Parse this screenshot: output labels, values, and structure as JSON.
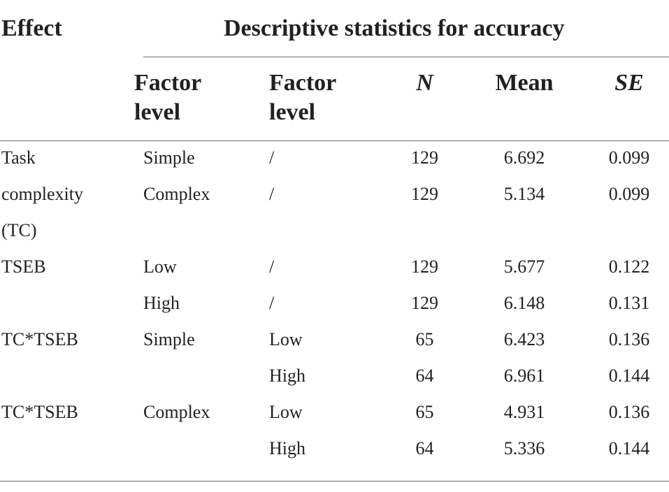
{
  "header": {
    "effect": "Effect",
    "group_title": "Descriptive statistics for accuracy",
    "factor_level_1": [
      "Factor",
      "level"
    ],
    "factor_level_2": [
      "Factor",
      "level"
    ],
    "n": "N",
    "mean": "Mean",
    "se": "SE"
  },
  "rows": [
    {
      "effect": "Task",
      "level1": "Simple",
      "level2": "/",
      "n": "129",
      "mean": "6.692",
      "se": "0.099"
    },
    {
      "effect": "complexity",
      "level1": "Complex",
      "level2": "/",
      "n": "129",
      "mean": "5.134",
      "se": "0.099"
    },
    {
      "effect": "(TC)",
      "level1": "",
      "level2": "",
      "n": "",
      "mean": "",
      "se": ""
    },
    {
      "effect": "TSEB",
      "level1": "Low",
      "level2": "/",
      "n": "129",
      "mean": "5.677",
      "se": "0.122"
    },
    {
      "effect": "",
      "level1": "High",
      "level2": "/",
      "n": "129",
      "mean": "6.148",
      "se": "0.131"
    },
    {
      "effect": "TC*TSEB",
      "level1": "Simple",
      "level2": "Low",
      "n": "65",
      "mean": "6.423",
      "se": "0.136"
    },
    {
      "effect": "",
      "level1": "",
      "level2": "High",
      "n": "64",
      "mean": "6.961",
      "se": "0.144"
    },
    {
      "effect": "TC*TSEB",
      "level1": "Complex",
      "level2": "Low",
      "n": "65",
      "mean": "4.931",
      "se": "0.136"
    },
    {
      "effect": "",
      "level1": "",
      "level2": "High",
      "n": "64",
      "mean": "5.336",
      "se": "0.144"
    }
  ]
}
